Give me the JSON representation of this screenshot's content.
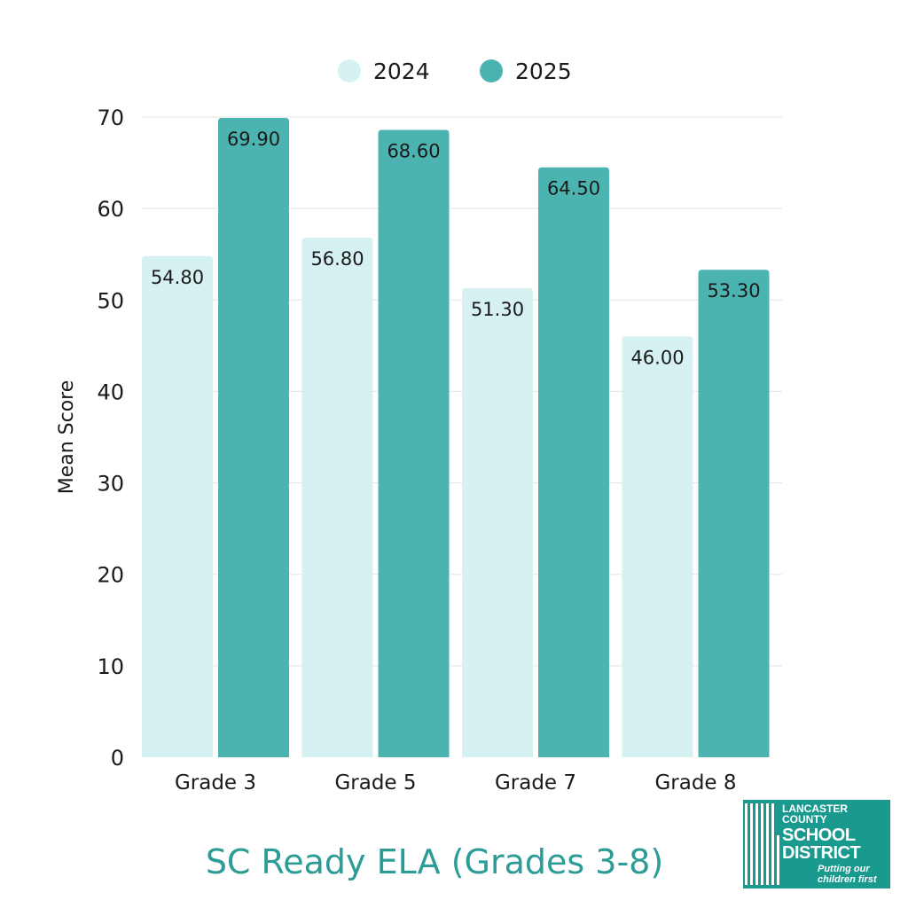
{
  "chart_data": {
    "type": "bar",
    "title": "SC Ready ELA (Grades 3-8)",
    "ylabel": "Mean Score",
    "xlabel": "",
    "categories": [
      "Grade 3",
      "Grade 5",
      "Grade 7",
      "Grade 8"
    ],
    "series": [
      {
        "name": "2024",
        "color": "#d5f1f1",
        "values": [
          54.8,
          56.8,
          51.3,
          46.0
        ],
        "labels": [
          "54.80",
          "56.80",
          "51.30",
          "46.00"
        ]
      },
      {
        "name": "2025",
        "color": "#4cb4b0",
        "values": [
          69.9,
          68.6,
          64.5,
          53.3
        ],
        "labels": [
          "69.90",
          "68.60",
          "64.50",
          "53.30"
        ]
      }
    ],
    "ylim": [
      0,
      70
    ],
    "yticks": [
      0,
      10,
      20,
      30,
      40,
      50,
      60,
      70
    ],
    "grid": true,
    "legend": "top-center"
  },
  "logo": {
    "line1": "LANCASTER COUNTY",
    "line2": "SCHOOL DISTRICT",
    "tagline": "Putting our children first"
  },
  "colors": {
    "title": "#2b9c96",
    "text": "#1a1a1a",
    "grid": "#e3e3e3",
    "logo_bg": "#1a9a8e"
  }
}
